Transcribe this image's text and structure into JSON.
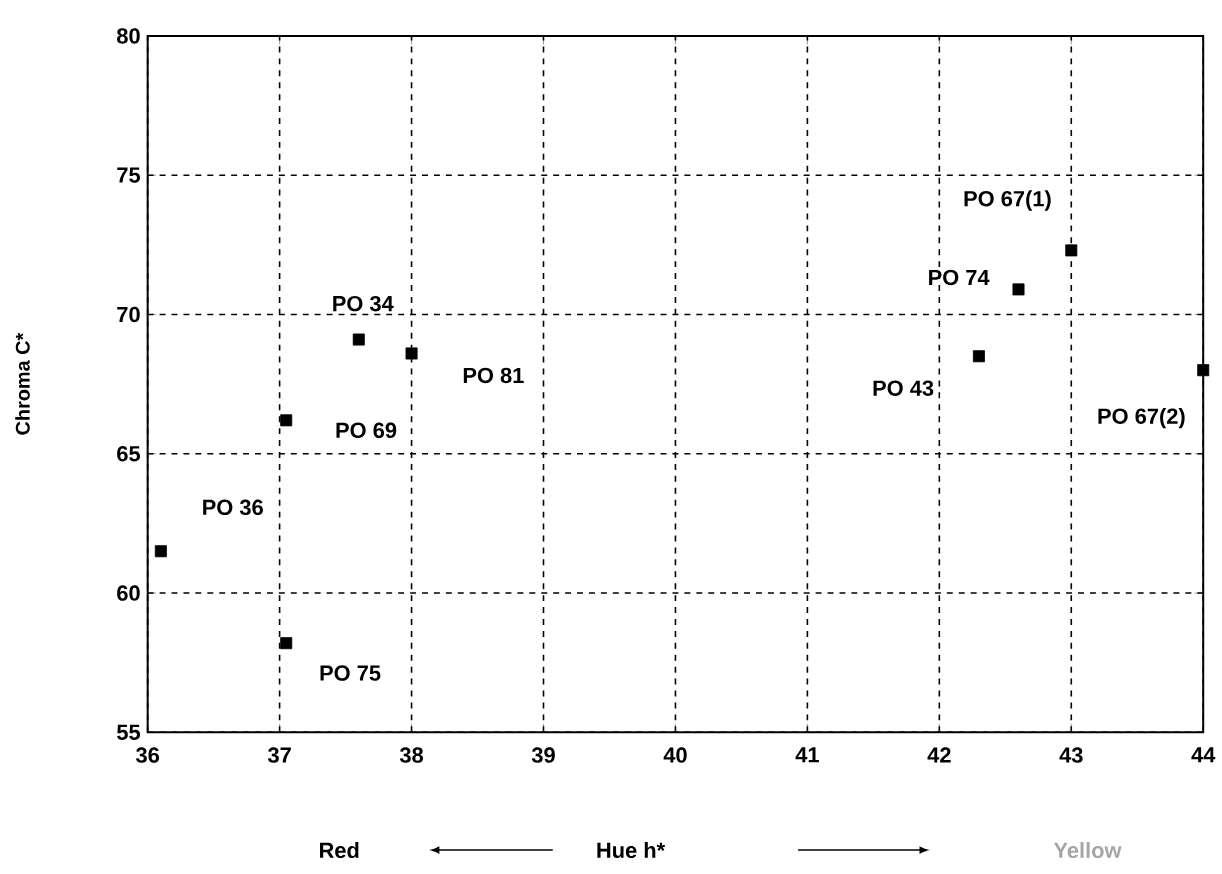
{
  "chart_data": {
    "type": "scatter",
    "xlabel": "Hue h*",
    "ylabel": "Chroma C*",
    "x": [
      36.1,
      37.05,
      37.05,
      37.6,
      38.0,
      42.3,
      42.6,
      43.0,
      44.0
    ],
    "series": [
      {
        "color": "#000000",
        "values": [
          61.5,
          58.2,
          66.2,
          69.1,
          68.6,
          68.5,
          70.9,
          72.3,
          68.0
        ]
      }
    ],
    "xlim": [
      36,
      44
    ],
    "xticks": [
      36,
      37,
      38,
      39,
      40,
      41,
      42,
      43,
      44
    ],
    "ylim": [
      55,
      80
    ],
    "yticks": [
      55,
      60,
      65,
      70,
      75,
      80
    ],
    "grid": true,
    "line_style": "dashed",
    "marker": "square",
    "annotations": [
      {
        "text": "PO 36",
        "x": 36.1,
        "y": 61.5
      },
      {
        "text": "PO 75",
        "x": 37.05,
        "y": 58.2
      },
      {
        "text": "PO 69",
        "x": 37.05,
        "y": 66.2
      },
      {
        "text": "PO 34",
        "x": 37.6,
        "y": 69.1
      },
      {
        "text": "PO 81",
        "x": 38.0,
        "y": 68.6
      },
      {
        "text": "PO 43",
        "x": 42.3,
        "y": 68.5
      },
      {
        "text": "PO 74",
        "x": 42.6,
        "y": 70.9
      },
      {
        "text": "PO 67(1)",
        "x": 43.0,
        "y": 72.3
      },
      {
        "text": "PO 67(2)",
        "x": 44.0,
        "y": 68.0
      },
      "Red",
      "Yellow"
    ]
  }
}
